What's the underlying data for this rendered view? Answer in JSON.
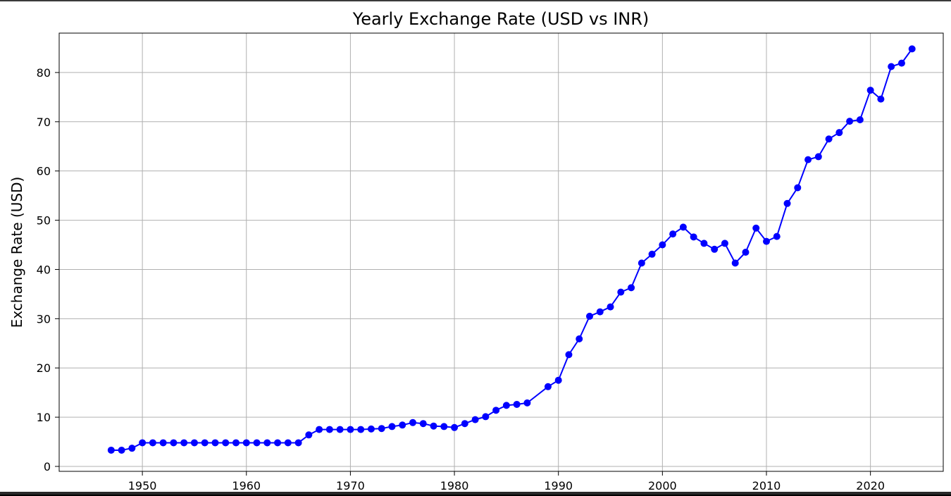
{
  "chart_data": {
    "type": "line",
    "title": "Yearly Exchange Rate (USD vs INR)",
    "xlabel": "",
    "ylabel": "Exchange Rate (USD)",
    "xlim": [
      1942,
      2027
    ],
    "ylim": [
      -1,
      88
    ],
    "xticks": [
      1950,
      1960,
      1970,
      1980,
      1990,
      2000,
      2010,
      2020
    ],
    "yticks": [
      0,
      10,
      20,
      30,
      40,
      50,
      60,
      70,
      80
    ],
    "grid": true,
    "series": [
      {
        "color": "#0000ff",
        "marker": "circle",
        "points": [
          [
            1947,
            3.3
          ],
          [
            1948,
            3.3
          ],
          [
            1949,
            3.7
          ],
          [
            1950,
            4.8
          ],
          [
            1951,
            4.8
          ],
          [
            1952,
            4.8
          ],
          [
            1953,
            4.8
          ],
          [
            1954,
            4.8
          ],
          [
            1955,
            4.8
          ],
          [
            1956,
            4.8
          ],
          [
            1957,
            4.8
          ],
          [
            1958,
            4.8
          ],
          [
            1959,
            4.8
          ],
          [
            1960,
            4.8
          ],
          [
            1961,
            4.8
          ],
          [
            1962,
            4.8
          ],
          [
            1963,
            4.8
          ],
          [
            1964,
            4.8
          ],
          [
            1965,
            4.8
          ],
          [
            1966,
            6.4
          ],
          [
            1967,
            7.5
          ],
          [
            1968,
            7.5
          ],
          [
            1969,
            7.5
          ],
          [
            1970,
            7.5
          ],
          [
            1971,
            7.5
          ],
          [
            1972,
            7.6
          ],
          [
            1973,
            7.7
          ],
          [
            1974,
            8.1
          ],
          [
            1975,
            8.4
          ],
          [
            1976,
            8.9
          ],
          [
            1977,
            8.7
          ],
          [
            1978,
            8.2
          ],
          [
            1979,
            8.1
          ],
          [
            1980,
            7.9
          ],
          [
            1981,
            8.7
          ],
          [
            1982,
            9.5
          ],
          [
            1983,
            10.1
          ],
          [
            1984,
            11.4
          ],
          [
            1985,
            12.4
          ],
          [
            1986,
            12.6
          ],
          [
            1987,
            12.9
          ],
          [
            1989,
            16.2
          ],
          [
            1990,
            17.5
          ],
          [
            1991,
            22.7
          ],
          [
            1992,
            25.9
          ],
          [
            1993,
            30.5
          ],
          [
            1994,
            31.4
          ],
          [
            1995,
            32.4
          ],
          [
            1996,
            35.4
          ],
          [
            1997,
            36.3
          ],
          [
            1998,
            41.3
          ],
          [
            1999,
            43.1
          ],
          [
            2000,
            45.0
          ],
          [
            2001,
            47.2
          ],
          [
            2002,
            48.6
          ],
          [
            2003,
            46.6
          ],
          [
            2004,
            45.3
          ],
          [
            2005,
            44.1
          ],
          [
            2006,
            45.3
          ],
          [
            2007,
            41.3
          ],
          [
            2008,
            43.5
          ],
          [
            2009,
            48.4
          ],
          [
            2010,
            45.7
          ],
          [
            2011,
            46.7
          ],
          [
            2012,
            53.4
          ],
          [
            2013,
            56.6
          ],
          [
            2014,
            62.3
          ],
          [
            2015,
            62.9
          ],
          [
            2016,
            66.5
          ],
          [
            2017,
            67.8
          ],
          [
            2018,
            70.1
          ],
          [
            2019,
            70.4
          ],
          [
            2020,
            76.4
          ],
          [
            2021,
            74.6
          ],
          [
            2022,
            81.2
          ],
          [
            2023,
            81.9
          ],
          [
            2024,
            84.8
          ]
        ]
      }
    ]
  }
}
